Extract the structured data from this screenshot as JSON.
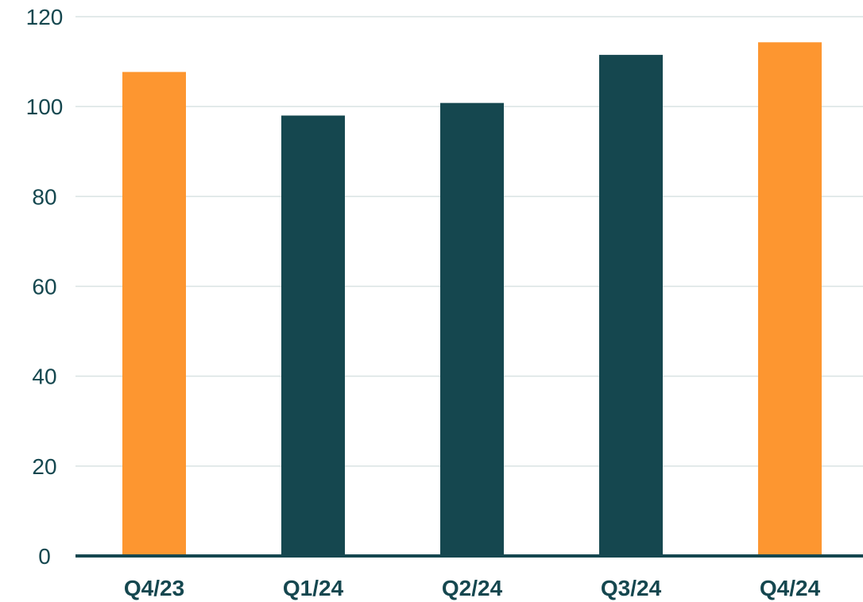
{
  "chart_data": {
    "type": "bar",
    "categories": [
      "Q4/23",
      "Q1/24",
      "Q2/24",
      "Q3/24",
      "Q4/24"
    ],
    "values": [
      107.7,
      98,
      100.8,
      111.5,
      114.3
    ],
    "yticks": [
      0,
      20,
      40,
      60,
      80,
      100,
      120
    ],
    "ylim": [
      0,
      120
    ],
    "title": "",
    "xlabel": "",
    "ylabel": "",
    "grid": true,
    "bar_colors": [
      "#fd9630",
      "#15474f",
      "#15474f",
      "#15474f",
      "#fd9630"
    ],
    "colors": {
      "highlight": "#fd9630",
      "primary": "#15474f",
      "grid": "#d9e3e3",
      "axis": "#15474f"
    }
  }
}
